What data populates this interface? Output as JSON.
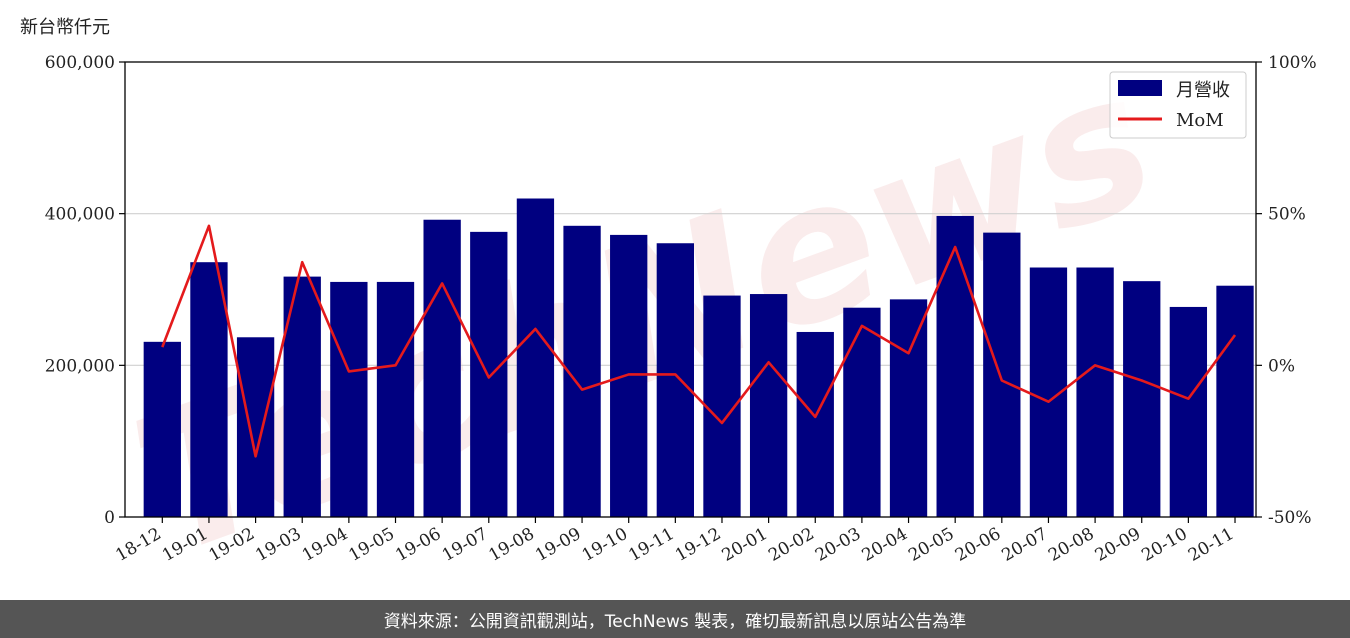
{
  "chart_data": {
    "type": "bar",
    "unit_label": "新台幣仟元",
    "categories": [
      "18-12",
      "19-01",
      "19-02",
      "19-03",
      "19-04",
      "19-05",
      "19-06",
      "19-07",
      "19-08",
      "19-09",
      "19-10",
      "19-11",
      "19-12",
      "20-01",
      "20-02",
      "20-03",
      "20-04",
      "20-05",
      "20-06",
      "20-07",
      "20-08",
      "20-09",
      "20-10",
      "20-11"
    ],
    "series": [
      {
        "name": "月營收",
        "axis": "left",
        "type": "bar",
        "color": "#000080",
        "values": [
          231000,
          336000,
          237000,
          317000,
          310000,
          310000,
          392000,
          376000,
          420000,
          384000,
          372000,
          361000,
          292000,
          294000,
          244000,
          276000,
          287000,
          397000,
          375000,
          329000,
          329000,
          311000,
          277000,
          305000
        ]
      },
      {
        "name": "MoM",
        "axis": "right",
        "type": "line",
        "color": "#e41a1c",
        "values": [
          6,
          46,
          -30,
          34,
          -2,
          0,
          27,
          -4,
          12,
          -8,
          -3,
          -3,
          -19,
          1,
          -17,
          13,
          4,
          39,
          -5,
          -12,
          0,
          -5,
          -11,
          10
        ]
      }
    ],
    "y_left": {
      "min": 0,
      "max": 600000,
      "ticks": [
        0,
        200000,
        400000,
        600000
      ],
      "tick_labels": [
        "0",
        "200,000",
        "400,000",
        "600,000"
      ]
    },
    "y_right": {
      "min": -50,
      "max": 100,
      "ticks": [
        -50,
        0,
        50,
        100
      ],
      "tick_labels": [
        "-50%",
        "0%",
        "50%",
        "100%"
      ]
    },
    "grid": "horizontal",
    "legend": "top-right",
    "watermark": "TechNews"
  },
  "footer": {
    "text": "資料來源：公開資訊觀測站，TechNews 製表，確切最新訊息以原站公告為準"
  }
}
